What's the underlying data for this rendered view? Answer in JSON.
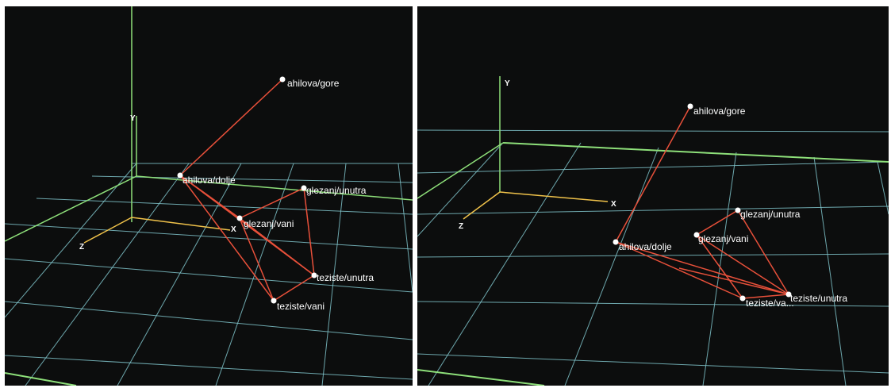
{
  "colors": {
    "background": "#0c0d0d",
    "grid": "#7fc3c9",
    "y_axis": "#8ee07a",
    "x_axis": "#f0c24a",
    "z_axis": "#f0c24a",
    "floor_edge": "#8ee07a",
    "segment": "#e8503a",
    "point": "#ffffff",
    "label": "#ffffff"
  },
  "views": [
    {
      "axes": {
        "x": "X",
        "y": "Y",
        "z": "Z"
      },
      "points": [
        {
          "id": "ahilova-gore",
          "label": "ahilova/gore"
        },
        {
          "id": "ahilova-dolje",
          "label": "ahilova/dolje"
        },
        {
          "id": "glezanj-unutra",
          "label": "glezanj/unutra"
        },
        {
          "id": "glezanj-vani",
          "label": "glezanj/vani"
        },
        {
          "id": "teziste-unutra",
          "label": "teziste/unutra"
        },
        {
          "id": "teziste-vani",
          "label": "teziste/vani"
        }
      ]
    },
    {
      "axes": {
        "x": "X",
        "y": "Y",
        "z": "Z"
      },
      "points": [
        {
          "id": "ahilova-gore",
          "label": "ahilova/gore"
        },
        {
          "id": "ahilova-dolje",
          "label": "ahilova/dolje"
        },
        {
          "id": "glezanj-unutra",
          "label": "glezanj/unutra"
        },
        {
          "id": "glezanj-vani",
          "label": "glezanj/vani"
        },
        {
          "id": "teziste-unutra",
          "label": "teziste/unutra"
        },
        {
          "id": "teziste-vani",
          "label": "teziste/va..."
        }
      ]
    }
  ]
}
